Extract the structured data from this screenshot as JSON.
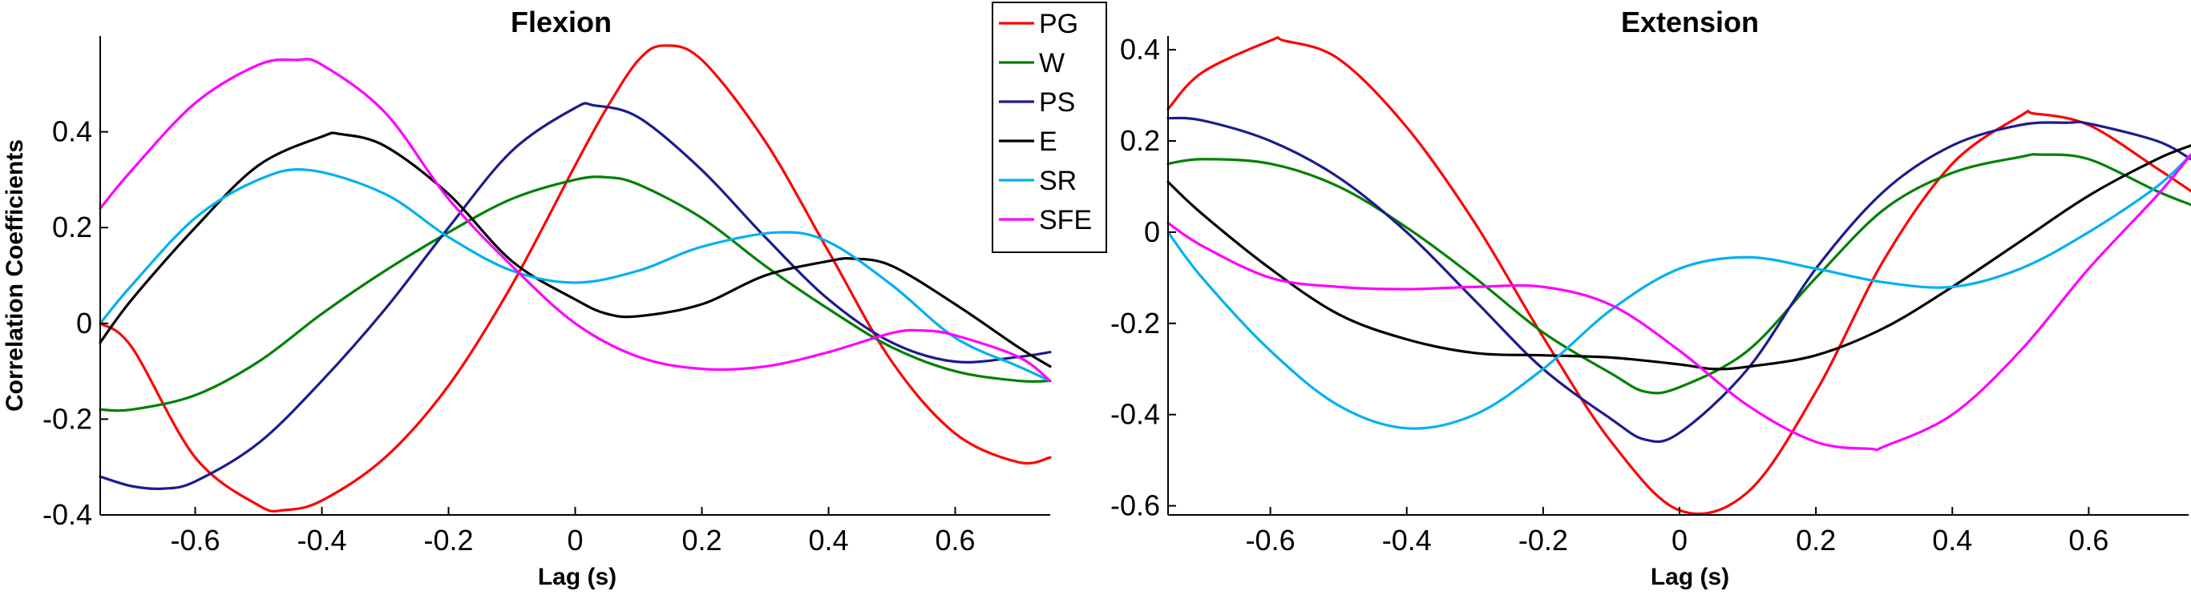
{
  "chart_data": [
    {
      "type": "line",
      "title": "Flexion",
      "xlabel": "Lag (s)",
      "ylabel": "Correlation Coefficients",
      "xlim": [
        -0.75,
        0.75
      ],
      "ylim": [
        -0.4,
        0.6
      ],
      "xticks": [
        -0.6,
        -0.4,
        -0.2,
        0,
        0.2,
        0.4,
        0.6
      ],
      "xtick_labels": [
        "-0.6",
        "-0.4",
        "-0.2",
        "0",
        "0.2",
        "0.4",
        "0.6"
      ],
      "yticks": [
        -0.4,
        -0.2,
        0,
        0.2,
        0.4
      ],
      "ytick_labels": [
        "-0.4",
        "-0.2",
        "0",
        "0.2",
        "0.4"
      ],
      "legend": "top-right",
      "series": [
        {
          "name": "PG",
          "color": "#ff0000",
          "x": [
            -0.75,
            -0.7,
            -0.6,
            -0.5,
            -0.46,
            -0.4,
            -0.3,
            -0.2,
            -0.1,
            0,
            0.05,
            0.1,
            0.14,
            0.2,
            0.3,
            0.4,
            0.5,
            0.6,
            0.7,
            0.75
          ],
          "y": [
            0.0,
            -0.05,
            -0.28,
            -0.38,
            -0.39,
            -0.37,
            -0.28,
            -0.13,
            0.08,
            0.33,
            0.45,
            0.55,
            0.58,
            0.55,
            0.38,
            0.15,
            -0.08,
            -0.23,
            -0.29,
            -0.28
          ]
        },
        {
          "name": "W",
          "color": "#008000",
          "x": [
            -0.75,
            -0.7,
            -0.6,
            -0.5,
            -0.4,
            -0.3,
            -0.2,
            -0.1,
            0,
            0.05,
            0.1,
            0.2,
            0.3,
            0.4,
            0.5,
            0.6,
            0.7,
            0.75
          ],
          "y": [
            -0.18,
            -0.18,
            -0.15,
            -0.08,
            0.02,
            0.11,
            0.19,
            0.26,
            0.3,
            0.305,
            0.29,
            0.22,
            0.12,
            0.03,
            -0.05,
            -0.1,
            -0.12,
            -0.12
          ]
        },
        {
          "name": "PS",
          "color": "#1c1c8c",
          "x": [
            -0.75,
            -0.7,
            -0.65,
            -0.6,
            -0.5,
            -0.4,
            -0.3,
            -0.2,
            -0.1,
            0,
            0.03,
            0.1,
            0.2,
            0.3,
            0.4,
            0.5,
            0.6,
            0.7,
            0.75
          ],
          "y": [
            -0.32,
            -0.34,
            -0.345,
            -0.33,
            -0.25,
            -0.12,
            0.03,
            0.2,
            0.36,
            0.45,
            0.455,
            0.43,
            0.32,
            0.18,
            0.05,
            -0.04,
            -0.08,
            -0.07,
            -0.06
          ]
        },
        {
          "name": "E",
          "color": "#000000",
          "x": [
            -0.75,
            -0.7,
            -0.6,
            -0.5,
            -0.4,
            -0.37,
            -0.3,
            -0.2,
            -0.1,
            0,
            0.05,
            0.1,
            0.2,
            0.3,
            0.4,
            0.44,
            0.5,
            0.6,
            0.7,
            0.75
          ],
          "y": [
            -0.04,
            0.05,
            0.2,
            0.33,
            0.39,
            0.395,
            0.37,
            0.27,
            0.13,
            0.05,
            0.02,
            0.015,
            0.04,
            0.1,
            0.13,
            0.135,
            0.12,
            0.04,
            -0.05,
            -0.09
          ]
        },
        {
          "name": "SR",
          "color": "#00b0f0",
          "x": [
            -0.75,
            -0.7,
            -0.6,
            -0.5,
            -0.42,
            -0.3,
            -0.2,
            -0.1,
            0,
            0.1,
            0.2,
            0.32,
            0.4,
            0.5,
            0.6,
            0.7,
            0.75
          ],
          "y": [
            0.0,
            0.08,
            0.22,
            0.3,
            0.32,
            0.27,
            0.18,
            0.11,
            0.085,
            0.11,
            0.16,
            0.19,
            0.17,
            0.08,
            -0.03,
            -0.09,
            -0.12
          ]
        },
        {
          "name": "SFE",
          "color": "#ff00ff",
          "x": [
            -0.75,
            -0.7,
            -0.6,
            -0.5,
            -0.44,
            -0.4,
            -0.3,
            -0.2,
            -0.1,
            0,
            0.1,
            0.2,
            0.3,
            0.4,
            0.5,
            0.55,
            0.6,
            0.7,
            0.75
          ],
          "y": [
            0.24,
            0.32,
            0.46,
            0.54,
            0.55,
            0.54,
            0.44,
            0.26,
            0.12,
            0.0,
            -0.07,
            -0.095,
            -0.09,
            -0.06,
            -0.02,
            -0.015,
            -0.025,
            -0.07,
            -0.12
          ]
        }
      ]
    },
    {
      "type": "line",
      "title": "Extension",
      "xlabel": "Lag (s)",
      "ylabel": "",
      "xlim": [
        -0.75,
        0.75
      ],
      "ylim": [
        -0.62,
        0.43
      ],
      "xticks": [
        -0.6,
        -0.4,
        -0.2,
        0,
        0.2,
        0.4,
        0.6
      ],
      "xtick_labels": [
        "-0.6",
        "-0.4",
        "-0.2",
        "0",
        "0.2",
        "0.4",
        "0.6"
      ],
      "yticks": [
        -0.6,
        -0.4,
        -0.2,
        0,
        0.2,
        0.4
      ],
      "ytick_labels": [
        "-0.6",
        "-0.4",
        "-0.2",
        "0",
        "0.2",
        "0.4"
      ],
      "series": [
        {
          "name": "PG",
          "color": "#ff0000",
          "x": [
            -0.75,
            -0.7,
            -0.6,
            -0.58,
            -0.5,
            -0.4,
            -0.3,
            -0.2,
            -0.1,
            0,
            0.1,
            0.2,
            0.3,
            0.4,
            0.5,
            0.52,
            0.6,
            0.7,
            0.75
          ],
          "y": [
            0.27,
            0.35,
            0.42,
            0.42,
            0.38,
            0.23,
            0.02,
            -0.23,
            -0.46,
            -0.61,
            -0.57,
            -0.35,
            -0.06,
            0.15,
            0.255,
            0.26,
            0.235,
            0.14,
            0.09
          ]
        },
        {
          "name": "W",
          "color": "#008000",
          "x": [
            -0.75,
            -0.7,
            -0.6,
            -0.5,
            -0.4,
            -0.3,
            -0.2,
            -0.1,
            -0.05,
            0,
            0.1,
            0.2,
            0.3,
            0.4,
            0.5,
            0.53,
            0.6,
            0.7,
            0.75
          ],
          "y": [
            0.15,
            0.16,
            0.15,
            0.1,
            0.01,
            -0.1,
            -0.22,
            -0.31,
            -0.35,
            -0.34,
            -0.26,
            -0.1,
            0.05,
            0.13,
            0.165,
            0.17,
            0.16,
            0.09,
            0.06
          ]
        },
        {
          "name": "PS",
          "color": "#1c1c8c",
          "x": [
            -0.75,
            -0.7,
            -0.6,
            -0.5,
            -0.4,
            -0.3,
            -0.2,
            -0.1,
            -0.05,
            0,
            0.1,
            0.2,
            0.3,
            0.4,
            0.5,
            0.57,
            0.6,
            0.7,
            0.75
          ],
          "y": [
            0.25,
            0.245,
            0.2,
            0.12,
            0.0,
            -0.15,
            -0.3,
            -0.41,
            -0.455,
            -0.44,
            -0.3,
            -0.08,
            0.09,
            0.19,
            0.235,
            0.24,
            0.238,
            0.2,
            0.16
          ]
        },
        {
          "name": "E",
          "color": "#000000",
          "x": [
            -0.75,
            -0.7,
            -0.6,
            -0.5,
            -0.4,
            -0.3,
            -0.2,
            -0.1,
            0,
            0.05,
            0.1,
            0.2,
            0.3,
            0.4,
            0.5,
            0.6,
            0.7,
            0.75
          ],
          "y": [
            0.11,
            0.04,
            -0.08,
            -0.18,
            -0.235,
            -0.265,
            -0.27,
            -0.275,
            -0.29,
            -0.3,
            -0.295,
            -0.27,
            -0.21,
            -0.12,
            -0.02,
            0.08,
            0.16,
            0.19
          ]
        },
        {
          "name": "SR",
          "color": "#00b0f0",
          "x": [
            -0.75,
            -0.7,
            -0.6,
            -0.5,
            -0.4,
            -0.3,
            -0.2,
            -0.1,
            0,
            0.1,
            0.2,
            0.3,
            0.4,
            0.5,
            0.6,
            0.7,
            0.75
          ],
          "y": [
            0.0,
            -0.1,
            -0.26,
            -0.38,
            -0.43,
            -0.4,
            -0.3,
            -0.17,
            -0.08,
            -0.055,
            -0.08,
            -0.11,
            -0.12,
            -0.08,
            0.0,
            0.1,
            0.17
          ]
        },
        {
          "name": "SFE",
          "color": "#ff00ff",
          "x": [
            -0.75,
            -0.7,
            -0.6,
            -0.5,
            -0.4,
            -0.3,
            -0.2,
            -0.1,
            0,
            0.1,
            0.2,
            0.28,
            0.3,
            0.4,
            0.5,
            0.6,
            0.7,
            0.75
          ],
          "y": [
            0.02,
            -0.03,
            -0.1,
            -0.12,
            -0.125,
            -0.12,
            -0.12,
            -0.16,
            -0.26,
            -0.38,
            -0.46,
            -0.475,
            -0.47,
            -0.4,
            -0.26,
            -0.08,
            0.08,
            0.17
          ]
        }
      ]
    }
  ]
}
